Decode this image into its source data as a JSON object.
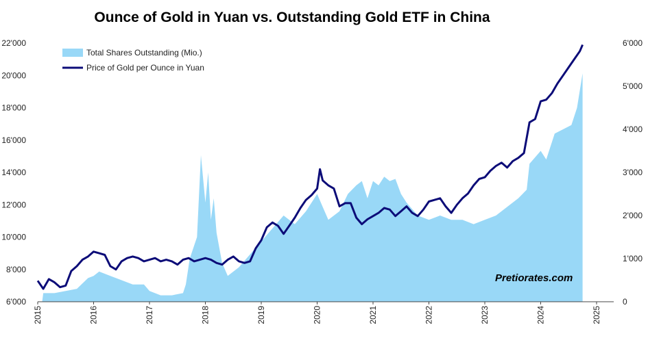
{
  "chart_data": {
    "type": "area",
    "title": "Ounce of Gold in Yuan vs. Outstanding Gold ETF in China",
    "xlabel": "",
    "ylabel_left": "",
    "ylabel_right": "",
    "x_ticks": [
      "2015",
      "2016",
      "2017",
      "2018",
      "2019",
      "2020",
      "2021",
      "2022",
      "2023",
      "2024",
      "2025"
    ],
    "y_left_ticks": [
      "6'000",
      "8'000",
      "10'000",
      "12'000",
      "14'000",
      "16'000",
      "18'000",
      "20'000",
      "22'000"
    ],
    "y_right_ticks": [
      "0",
      "1'000",
      "2'000",
      "3'000",
      "4'000",
      "5'000",
      "6'000"
    ],
    "ylim_left": [
      6000,
      22000
    ],
    "ylim_right": [
      0,
      6000
    ],
    "xlim": [
      2015,
      2025
    ],
    "grid": false,
    "legend_position": "top-left",
    "watermark": "Pretiorates.com",
    "colors": {
      "shares": "#99d8f7",
      "price": "#0c0c78"
    },
    "series": [
      {
        "name": "Total Shares Outstanding (Mio.)",
        "axis": "right",
        "kind": "area",
        "x": [
          2015.0,
          2015.08,
          2015.1,
          2015.3,
          2015.5,
          2015.7,
          2015.9,
          2016.0,
          2016.1,
          2016.3,
          2016.5,
          2016.7,
          2016.9,
          2017.0,
          2017.2,
          2017.4,
          2017.6,
          2017.65,
          2017.72,
          2017.85,
          2017.92,
          2018.0,
          2018.05,
          2018.1,
          2018.15,
          2018.2,
          2018.3,
          2018.4,
          2018.6,
          2018.8,
          2019.0,
          2019.2,
          2019.4,
          2019.6,
          2019.8,
          2020.0,
          2020.1,
          2020.2,
          2020.4,
          2020.55,
          2020.7,
          2020.8,
          2020.9,
          2021.0,
          2021.1,
          2021.2,
          2021.3,
          2021.4,
          2021.5,
          2021.6,
          2021.8,
          2022.0,
          2022.2,
          2022.4,
          2022.6,
          2022.8,
          2023.0,
          2023.2,
          2023.4,
          2023.6,
          2023.75,
          2023.8,
          2024.0,
          2024.1,
          2024.2,
          2024.25,
          2024.4,
          2024.55,
          2024.6,
          2024.65,
          2024.75
        ],
        "values": [
          0,
          0,
          200,
          200,
          250,
          300,
          550,
          600,
          700,
          600,
          500,
          400,
          400,
          250,
          150,
          150,
          200,
          400,
          1000,
          1500,
          3400,
          2300,
          3000,
          1900,
          2400,
          1600,
          900,
          600,
          800,
          1100,
          1400,
          1700,
          2000,
          1800,
          2100,
          2500,
          2200,
          1900,
          2100,
          2500,
          2700,
          2800,
          2400,
          2800,
          2700,
          2900,
          2800,
          2850,
          2500,
          2300,
          2000,
          1900,
          2000,
          1900,
          1900,
          1800,
          1900,
          2000,
          2200,
          2400,
          2600,
          3200,
          3500,
          3300,
          3700,
          3900,
          4000,
          4100,
          4300,
          4500,
          5300
        ]
      },
      {
        "name": "Price of Gold per Ounce in Yuan",
        "axis": "left",
        "kind": "line",
        "x": [
          2015.0,
          2015.1,
          2015.2,
          2015.3,
          2015.4,
          2015.5,
          2015.6,
          2015.7,
          2015.8,
          2015.9,
          2016.0,
          2016.1,
          2016.2,
          2016.3,
          2016.4,
          2016.5,
          2016.6,
          2016.7,
          2016.8,
          2016.9,
          2017.0,
          2017.1,
          2017.2,
          2017.3,
          2017.4,
          2017.5,
          2017.6,
          2017.7,
          2017.8,
          2017.9,
          2018.0,
          2018.1,
          2018.2,
          2018.3,
          2018.4,
          2018.5,
          2018.6,
          2018.7,
          2018.8,
          2018.9,
          2019.0,
          2019.1,
          2019.2,
          2019.3,
          2019.4,
          2019.5,
          2019.6,
          2019.7,
          2019.8,
          2019.9,
          2020.0,
          2020.05,
          2020.1,
          2020.2,
          2020.3,
          2020.4,
          2020.5,
          2020.6,
          2020.7,
          2020.8,
          2020.9,
          2021.0,
          2021.1,
          2021.2,
          2021.3,
          2021.4,
          2021.5,
          2021.6,
          2021.7,
          2021.8,
          2021.9,
          2022.0,
          2022.1,
          2022.2,
          2022.3,
          2022.4,
          2022.5,
          2022.6,
          2022.7,
          2022.8,
          2022.9,
          2023.0,
          2023.1,
          2023.2,
          2023.3,
          2023.4,
          2023.5,
          2023.6,
          2023.7,
          2023.8,
          2023.9,
          2024.0,
          2024.1,
          2024.2,
          2024.3,
          2024.4,
          2024.5,
          2024.6,
          2024.7,
          2024.75
        ],
        "values": [
          7300,
          6800,
          7400,
          7200,
          6900,
          7000,
          7900,
          8200,
          8600,
          8800,
          9100,
          9000,
          8900,
          8200,
          8000,
          8500,
          8700,
          8800,
          8700,
          8500,
          8600,
          8700,
          8500,
          8600,
          8500,
          8300,
          8600,
          8700,
          8500,
          8600,
          8700,
          8600,
          8400,
          8300,
          8600,
          8800,
          8500,
          8400,
          8500,
          9300,
          9800,
          10600,
          10900,
          10700,
          10200,
          10700,
          11200,
          11800,
          12300,
          12600,
          13000,
          14200,
          13500,
          13200,
          13000,
          11900,
          12100,
          12100,
          11200,
          10800,
          11100,
          11300,
          11500,
          11800,
          11700,
          11300,
          11600,
          11900,
          11500,
          11300,
          11700,
          12200,
          12300,
          12400,
          11900,
          11500,
          12000,
          12400,
          12700,
          13200,
          13600,
          13700,
          14100,
          14400,
          14600,
          14300,
          14700,
          14900,
          15200,
          17100,
          17300,
          18400,
          18500,
          18900,
          19500,
          20000,
          20500,
          21000,
          21500,
          21900
        ]
      }
    ]
  }
}
